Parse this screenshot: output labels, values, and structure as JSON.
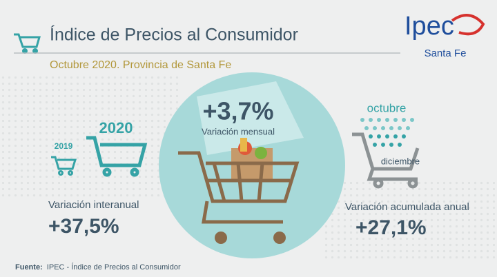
{
  "header": {
    "title": "Índice de Precios al Consumidor",
    "subtitle": "Octubre 2020. Provincia de Santa Fe",
    "logo": "Ipec",
    "logo_region": "Santa Fe"
  },
  "monthly": {
    "value": "+3,7%",
    "label": "Variación mensual"
  },
  "yearly": {
    "year_current": "2020",
    "year_previous": "2019",
    "label": "Variación interanual",
    "value": "+37,5%"
  },
  "cumulative": {
    "from": "octubre",
    "to": "diciembre",
    "label": "Variación acumulada anual",
    "value": "+27,1%"
  },
  "footer": {
    "source_label": "Fuente:",
    "source": "IPEC - Índice de Precios al Consumidor"
  }
}
